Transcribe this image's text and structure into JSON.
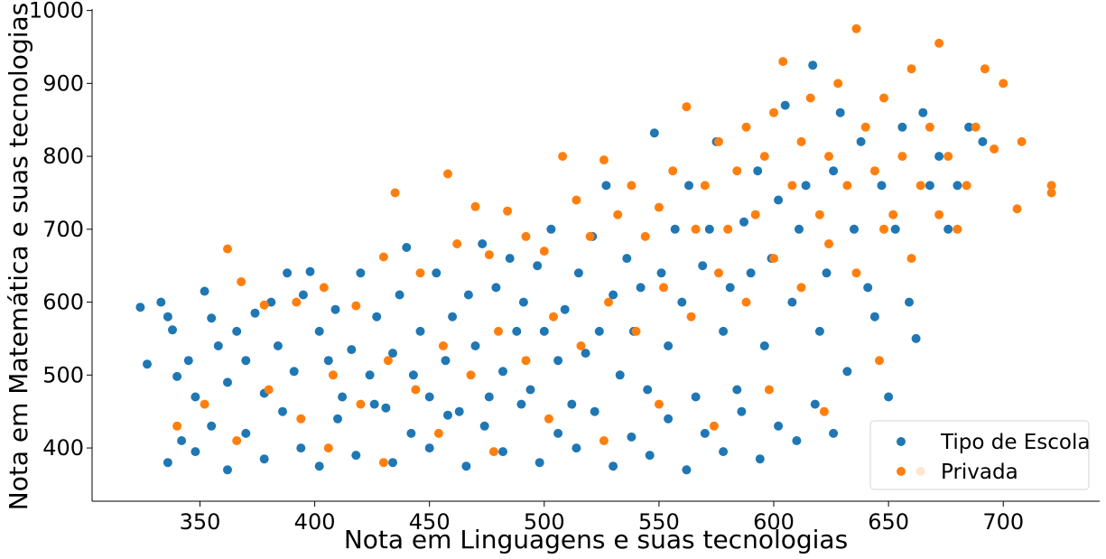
{
  "chart_data": {
    "type": "scatter",
    "title": "",
    "xlabel": "Nota em Linguagens e suas tecnologias",
    "ylabel": "Nota em Matemática e suas tecnologias",
    "xlim": [
      303,
      742
    ],
    "ylim": [
      327,
      1002
    ],
    "x_ticks": [
      350,
      400,
      450,
      500,
      550,
      600,
      650,
      700
    ],
    "y_ticks": [
      400,
      500,
      600,
      700,
      800,
      900,
      1000
    ],
    "grid": false,
    "legend_position": "lower-right",
    "legend": [
      "Tipo de Escola",
      "Privada"
    ],
    "series": [
      {
        "name": "Tipo de Escola",
        "color": "#1f77b4",
        "points": [
          [
            324,
            593
          ],
          [
            327,
            515
          ],
          [
            333,
            600
          ],
          [
            336,
            580
          ],
          [
            338,
            562
          ],
          [
            340,
            498
          ],
          [
            345,
            520
          ],
          [
            348,
            470
          ],
          [
            352,
            615
          ],
          [
            355,
            578
          ],
          [
            358,
            540
          ],
          [
            362,
            490
          ],
          [
            366,
            560
          ],
          [
            370,
            520
          ],
          [
            374,
            585
          ],
          [
            378,
            475
          ],
          [
            381,
            600
          ],
          [
            384,
            540
          ],
          [
            388,
            640
          ],
          [
            391,
            505
          ],
          [
            395,
            610
          ],
          [
            398,
            642
          ],
          [
            402,
            560
          ],
          [
            406,
            520
          ],
          [
            409,
            590
          ],
          [
            412,
            470
          ],
          [
            416,
            535
          ],
          [
            420,
            640
          ],
          [
            424,
            500
          ],
          [
            427,
            580
          ],
          [
            431,
            455
          ],
          [
            434,
            530
          ],
          [
            437,
            610
          ],
          [
            440,
            675
          ],
          [
            443,
            500
          ],
          [
            446,
            560
          ],
          [
            450,
            470
          ],
          [
            453,
            640
          ],
          [
            457,
            520
          ],
          [
            460,
            580
          ],
          [
            463,
            450
          ],
          [
            467,
            610
          ],
          [
            470,
            540
          ],
          [
            473,
            680
          ],
          [
            476,
            470
          ],
          [
            479,
            620
          ],
          [
            482,
            505
          ],
          [
            485,
            660
          ],
          [
            488,
            560
          ],
          [
            491,
            600
          ],
          [
            494,
            480
          ],
          [
            497,
            650
          ],
          [
            500,
            560
          ],
          [
            503,
            700
          ],
          [
            506,
            520
          ],
          [
            509,
            590
          ],
          [
            512,
            460
          ],
          [
            515,
            640
          ],
          [
            518,
            530
          ],
          [
            521,
            690
          ],
          [
            524,
            560
          ],
          [
            527,
            760
          ],
          [
            530,
            610
          ],
          [
            533,
            500
          ],
          [
            536,
            660
          ],
          [
            539,
            560
          ],
          [
            542,
            620
          ],
          [
            545,
            480
          ],
          [
            548,
            832
          ],
          [
            551,
            640
          ],
          [
            554,
            540
          ],
          [
            557,
            700
          ],
          [
            560,
            600
          ],
          [
            563,
            760
          ],
          [
            566,
            470
          ],
          [
            569,
            650
          ],
          [
            572,
            700
          ],
          [
            575,
            820
          ],
          [
            578,
            560
          ],
          [
            581,
            620
          ],
          [
            584,
            480
          ],
          [
            587,
            710
          ],
          [
            590,
            640
          ],
          [
            593,
            780
          ],
          [
            596,
            540
          ],
          [
            599,
            660
          ],
          [
            602,
            740
          ],
          [
            605,
            870
          ],
          [
            608,
            600
          ],
          [
            611,
            700
          ],
          [
            614,
            760
          ],
          [
            617,
            925
          ],
          [
            620,
            560
          ],
          [
            623,
            640
          ],
          [
            626,
            780
          ],
          [
            629,
            860
          ],
          [
            632,
            505
          ],
          [
            635,
            700
          ],
          [
            638,
            820
          ],
          [
            641,
            620
          ],
          [
            644,
            580
          ],
          [
            647,
            760
          ],
          [
            650,
            470
          ],
          [
            653,
            700
          ],
          [
            656,
            840
          ],
          [
            659,
            600
          ],
          [
            662,
            550
          ],
          [
            665,
            860
          ],
          [
            668,
            760
          ],
          [
            672,
            800
          ],
          [
            676,
            700
          ],
          [
            680,
            760
          ],
          [
            685,
            840
          ],
          [
            691,
            820
          ],
          [
            336,
            380
          ],
          [
            342,
            410
          ],
          [
            348,
            395
          ],
          [
            355,
            430
          ],
          [
            362,
            370
          ],
          [
            370,
            420
          ],
          [
            378,
            385
          ],
          [
            386,
            450
          ],
          [
            394,
            400
          ],
          [
            402,
            375
          ],
          [
            410,
            440
          ],
          [
            418,
            390
          ],
          [
            426,
            460
          ],
          [
            434,
            380
          ],
          [
            442,
            420
          ],
          [
            450,
            400
          ],
          [
            458,
            445
          ],
          [
            466,
            375
          ],
          [
            474,
            430
          ],
          [
            482,
            395
          ],
          [
            490,
            460
          ],
          [
            498,
            380
          ],
          [
            506,
            420
          ],
          [
            514,
            400
          ],
          [
            522,
            450
          ],
          [
            530,
            375
          ],
          [
            538,
            415
          ],
          [
            546,
            390
          ],
          [
            554,
            440
          ],
          [
            562,
            370
          ],
          [
            570,
            420
          ],
          [
            578,
            395
          ],
          [
            586,
            450
          ],
          [
            594,
            385
          ],
          [
            602,
            430
          ],
          [
            610,
            410
          ],
          [
            618,
            460
          ],
          [
            626,
            420
          ]
        ]
      },
      {
        "name": "Privada",
        "color": "#ff7f0e",
        "points": [
          [
            362,
            673
          ],
          [
            368,
            628
          ],
          [
            378,
            596
          ],
          [
            392,
            600
          ],
          [
            404,
            620
          ],
          [
            418,
            595
          ],
          [
            430,
            662
          ],
          [
            435,
            750
          ],
          [
            446,
            640
          ],
          [
            458,
            776
          ],
          [
            462,
            680
          ],
          [
            470,
            731
          ],
          [
            476,
            665
          ],
          [
            484,
            725
          ],
          [
            492,
            690
          ],
          [
            500,
            670
          ],
          [
            508,
            800
          ],
          [
            514,
            740
          ],
          [
            520,
            690
          ],
          [
            526,
            795
          ],
          [
            532,
            720
          ],
          [
            538,
            760
          ],
          [
            544,
            690
          ],
          [
            550,
            730
          ],
          [
            556,
            780
          ],
          [
            562,
            868
          ],
          [
            566,
            700
          ],
          [
            570,
            760
          ],
          [
            576,
            820
          ],
          [
            580,
            700
          ],
          [
            584,
            780
          ],
          [
            588,
            840
          ],
          [
            592,
            720
          ],
          [
            596,
            800
          ],
          [
            600,
            860
          ],
          [
            604,
            930
          ],
          [
            608,
            760
          ],
          [
            612,
            820
          ],
          [
            616,
            880
          ],
          [
            620,
            720
          ],
          [
            624,
            800
          ],
          [
            628,
            900
          ],
          [
            632,
            760
          ],
          [
            636,
            975
          ],
          [
            640,
            840
          ],
          [
            644,
            780
          ],
          [
            648,
            880
          ],
          [
            652,
            720
          ],
          [
            656,
            800
          ],
          [
            660,
            920
          ],
          [
            664,
            760
          ],
          [
            668,
            840
          ],
          [
            672,
            955
          ],
          [
            676,
            800
          ],
          [
            680,
            700
          ],
          [
            684,
            760
          ],
          [
            688,
            840
          ],
          [
            692,
            920
          ],
          [
            696,
            810
          ],
          [
            700,
            900
          ],
          [
            706,
            728
          ],
          [
            708,
            820
          ],
          [
            721,
            760
          ],
          [
            721,
            750
          ],
          [
            340,
            430
          ],
          [
            352,
            460
          ],
          [
            366,
            410
          ],
          [
            380,
            480
          ],
          [
            394,
            440
          ],
          [
            408,
            500
          ],
          [
            420,
            460
          ],
          [
            432,
            520
          ],
          [
            444,
            480
          ],
          [
            456,
            540
          ],
          [
            468,
            500
          ],
          [
            480,
            560
          ],
          [
            492,
            520
          ],
          [
            504,
            580
          ],
          [
            516,
            540
          ],
          [
            528,
            600
          ],
          [
            540,
            560
          ],
          [
            552,
            620
          ],
          [
            564,
            580
          ],
          [
            576,
            640
          ],
          [
            588,
            600
          ],
          [
            600,
            660
          ],
          [
            612,
            620
          ],
          [
            624,
            680
          ],
          [
            636,
            640
          ],
          [
            648,
            700
          ],
          [
            660,
            660
          ],
          [
            672,
            720
          ],
          [
            406,
            400
          ],
          [
            430,
            380
          ],
          [
            454,
            420
          ],
          [
            478,
            395
          ],
          [
            502,
            440
          ],
          [
            526,
            410
          ],
          [
            550,
            460
          ],
          [
            574,
            430
          ],
          [
            598,
            480
          ],
          [
            622,
            450
          ],
          [
            646,
            520
          ],
          [
            664,
            368
          ]
        ]
      }
    ]
  }
}
